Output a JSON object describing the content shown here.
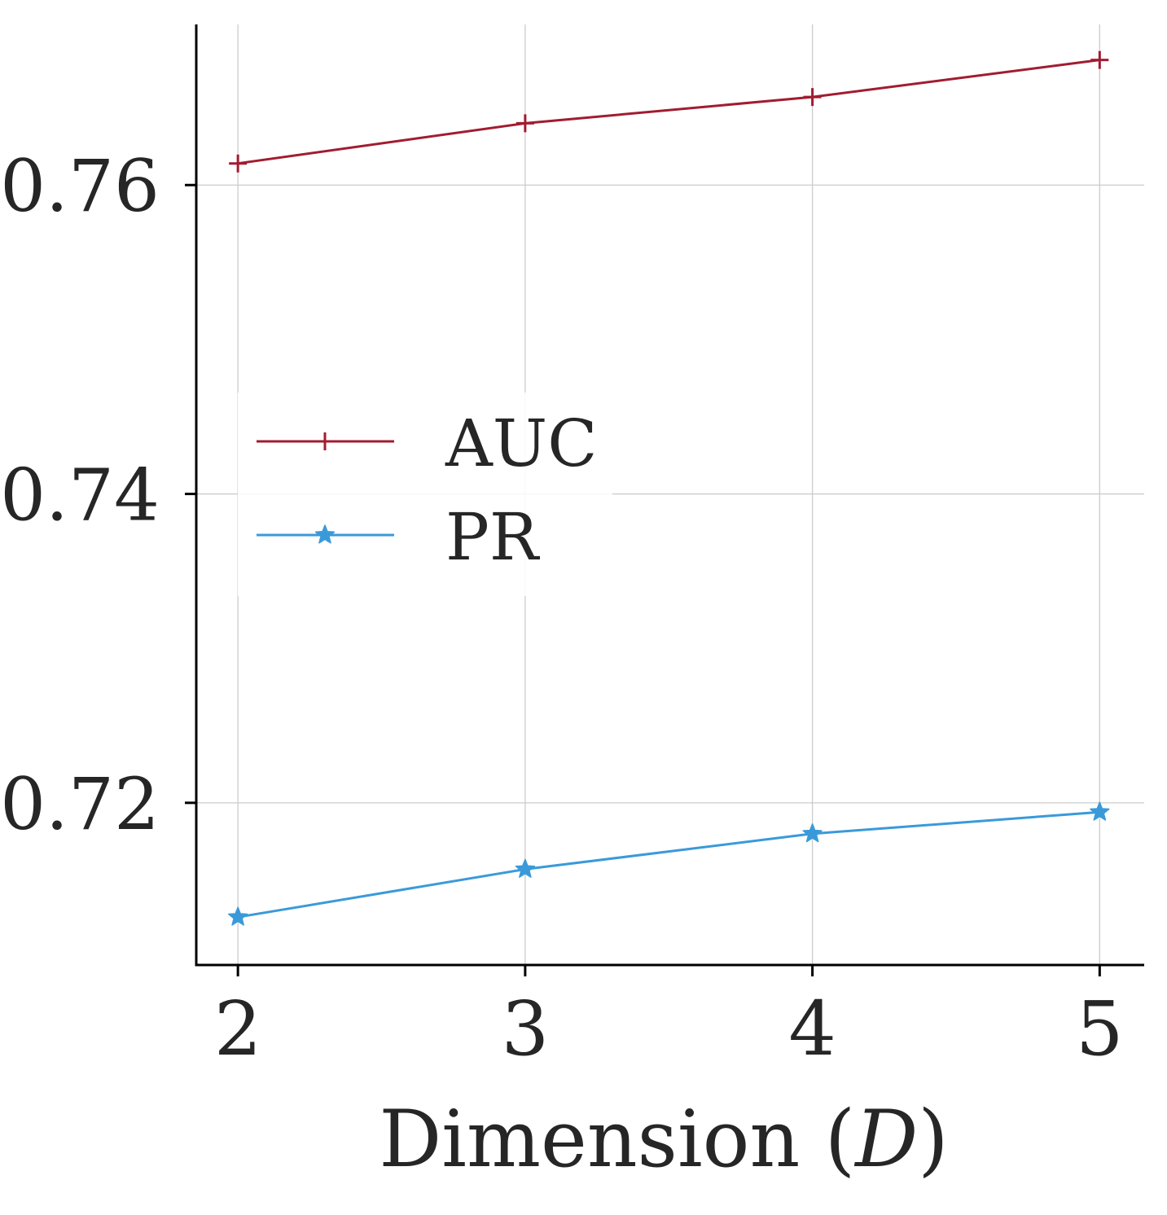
{
  "chart_data": {
    "type": "line",
    "title": "",
    "xlabel": "Dimension (",
    "xlabel_var": "D",
    "xlabel_close": ")",
    "ylabel": "",
    "x": [
      2,
      3,
      4,
      5
    ],
    "xticks": [
      "2",
      "3",
      "4",
      "5"
    ],
    "xlim": [
      1.855,
      5.155
    ],
    "yticks": [
      0.72,
      0.74,
      0.76
    ],
    "ytick_labels": [
      "0.72",
      "0.74",
      "0.76"
    ],
    "ylim": [
      0.7095,
      0.7704
    ],
    "grid": true,
    "legend_position": "center-left",
    "series": [
      {
        "name": "AUC",
        "marker": "plus",
        "color": "#a11c30",
        "values": [
          0.7614,
          0.764,
          0.7657,
          0.7681
        ]
      },
      {
        "name": "PR",
        "marker": "star",
        "color": "#3a9ad9",
        "values": [
          0.7126,
          0.7157,
          0.718,
          0.7194
        ]
      }
    ]
  }
}
